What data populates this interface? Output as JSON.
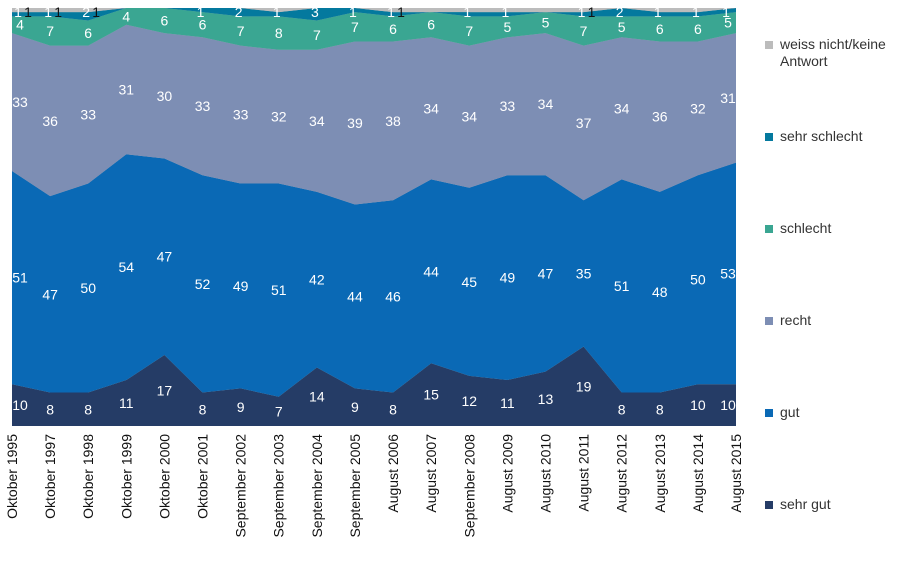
{
  "chart_data": {
    "type": "area",
    "stacked": true,
    "percent": true,
    "ylim": [
      0,
      100
    ],
    "grid": false,
    "legend_position": "right",
    "categories": [
      "Oktober 1995",
      "Oktober 1997",
      "Oktober 1998",
      "Oktober 1999",
      "Oktober 2000",
      "Oktober 2001",
      "September 2002",
      "September 2003",
      "September 2004",
      "September 2005",
      "August 2006",
      "August 2007",
      "September 2008",
      "August 2009",
      "August 2010",
      "August 2011",
      "August 2012",
      "August 2013",
      "August 2014",
      "August 2015"
    ],
    "series": [
      {
        "name": "sehr gut",
        "color": "#253c66",
        "values": [
          10,
          8,
          8,
          11,
          17,
          8,
          9,
          7,
          14,
          9,
          8,
          15,
          12,
          11,
          13,
          19,
          8,
          8,
          10,
          10
        ]
      },
      {
        "name": "gut",
        "color": "#0a69b5",
        "values": [
          51,
          47,
          50,
          54,
          47,
          52,
          49,
          51,
          42,
          44,
          46,
          44,
          45,
          49,
          47,
          35,
          51,
          48,
          50,
          53
        ]
      },
      {
        "name": "recht",
        "color": "#7d8eb4",
        "values": [
          33,
          36,
          33,
          31,
          30,
          33,
          33,
          32,
          34,
          39,
          38,
          34,
          34,
          33,
          34,
          37,
          34,
          36,
          32,
          31
        ]
      },
      {
        "name": "schlecht",
        "color": "#3aa692",
        "values": [
          4,
          7,
          6,
          4,
          6,
          6,
          7,
          8,
          7,
          7,
          6,
          6,
          7,
          5,
          5,
          7,
          5,
          6,
          6,
          5
        ]
      },
      {
        "name": "sehr schlecht",
        "color": "#04799e",
        "values": [
          1,
          1,
          2,
          0,
          0,
          1,
          2,
          1,
          3,
          1,
          1,
          0,
          1,
          1,
          0,
          1,
          2,
          1,
          1,
          1
        ]
      },
      {
        "name": "weiss nicht/keine Antwort",
        "color": "#bcbcbc",
        "values": [
          1,
          1,
          1,
          0,
          0,
          0,
          0,
          1,
          0,
          0,
          1,
          0,
          0,
          1,
          1,
          1,
          0,
          1,
          1,
          0
        ]
      }
    ],
    "data_labels": [
      {
        "series": 0,
        "values": [
          "10",
          "8",
          "8",
          "11",
          "17",
          "8",
          "9",
          "7",
          "14",
          "9",
          "8",
          "15",
          "12",
          "11",
          "13",
          "19",
          "8",
          "8",
          "10",
          "10"
        ]
      },
      {
        "series": 1,
        "values": [
          "51",
          "47",
          "50",
          "54",
          "47",
          "52",
          "49",
          "51",
          "42",
          "44",
          "46",
          "44",
          "45",
          "49",
          "47",
          "35",
          "51",
          "48",
          "50",
          "53"
        ]
      },
      {
        "series": 2,
        "values": [
          "33",
          "36",
          "33",
          "31",
          "30",
          "33",
          "33",
          "32",
          "34",
          "39",
          "38",
          "34",
          "34",
          "33",
          "34",
          "37",
          "34",
          "36",
          "32",
          "31"
        ]
      },
      {
        "series": 3,
        "values": [
          "4",
          "7",
          "6",
          "4",
          "6",
          "6",
          "7",
          "8",
          "7",
          "7",
          "6",
          "6",
          "7",
          "5",
          "5",
          "7",
          "5",
          "6",
          "6",
          "5"
        ]
      },
      {
        "series": 4,
        "values": [
          "1",
          "1",
          "2",
          "",
          "",
          "1",
          "2",
          "1",
          "3",
          "1",
          "1",
          "",
          "1",
          "1",
          "",
          "1",
          "2",
          "1",
          "1",
          "1"
        ]
      },
      {
        "series": 5,
        "values": [
          "1",
          "1",
          "1",
          "",
          "",
          "",
          "",
          "",
          "",
          "",
          "1",
          "",
          "",
          "",
          "",
          "1",
          "",
          "",
          "",
          ""
        ]
      }
    ],
    "legend_order": [
      5,
      4,
      3,
      2,
      1,
      0
    ]
  }
}
